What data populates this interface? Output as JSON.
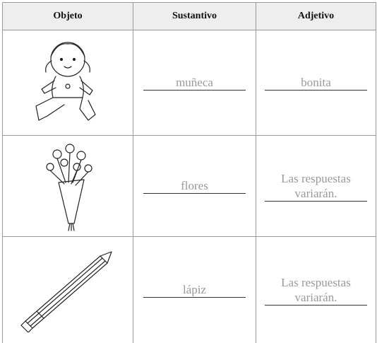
{
  "table": {
    "header": [
      "Objeto",
      "Sustantivo",
      "Adjetivo"
    ],
    "rows": [
      {
        "sustantivo": "muñeca",
        "adjetivo": "bonita"
      },
      {
        "sustantivo": "flores",
        "adjetivo": "Las respuestas variarán."
      },
      {
        "sustantivo": "lápiz",
        "adjetivo": "Las respuestas variarán."
      }
    ]
  }
}
